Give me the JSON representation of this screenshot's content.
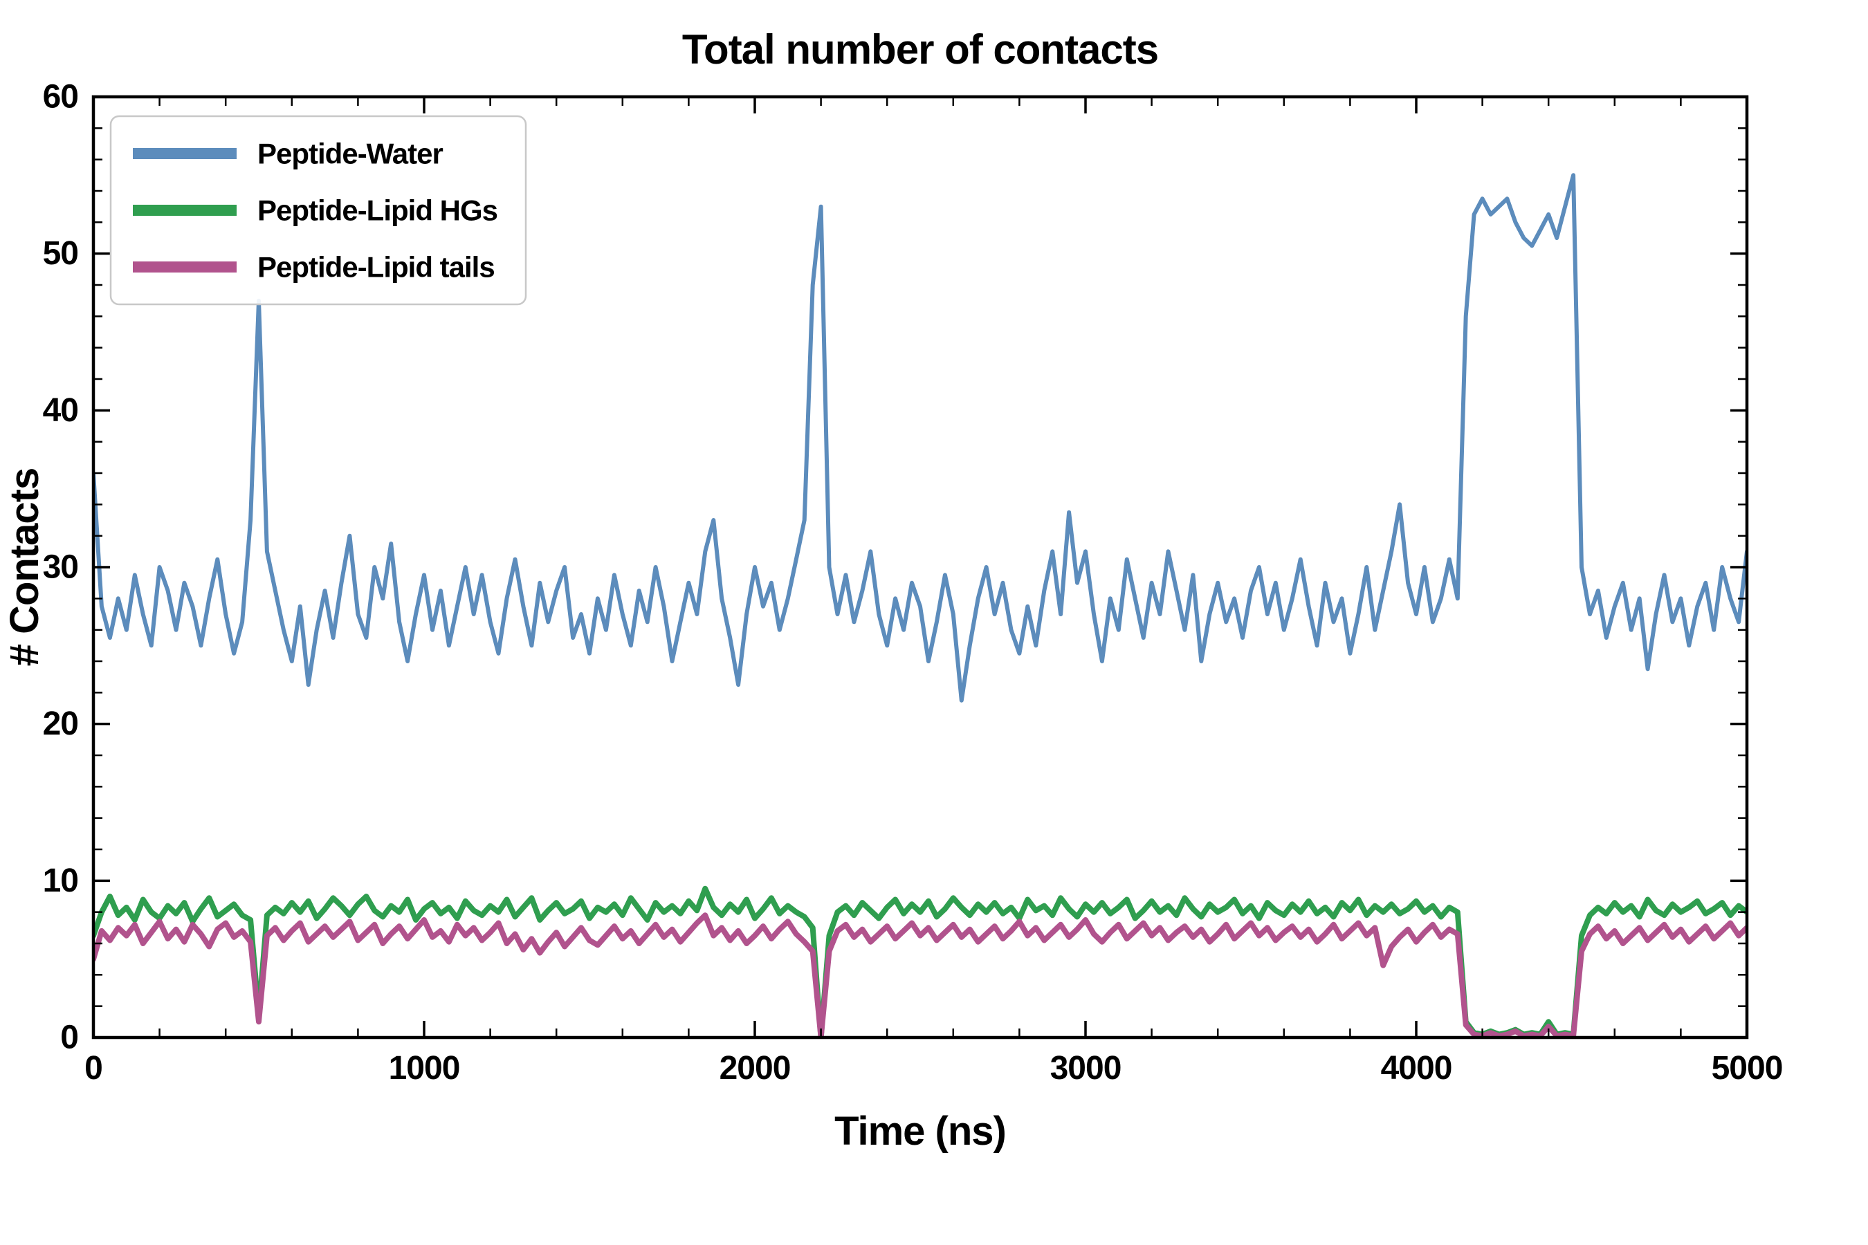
{
  "figure": {
    "background": "#ffffff",
    "axis_color": "#000000"
  },
  "chart_data": {
    "type": "line",
    "title": "Total number of contacts",
    "xlabel": "Time (ns)",
    "ylabel": "# Contacts",
    "xlim": [
      0,
      5000
    ],
    "ylim": [
      0,
      60
    ],
    "x_ticks": [
      0,
      1000,
      2000,
      3000,
      4000,
      5000
    ],
    "y_ticks": [
      0,
      10,
      20,
      30,
      40,
      50,
      60
    ],
    "x_minor_step": 200,
    "y_minor_step": 2,
    "grid": false,
    "legend_position": "upper-left",
    "x_start": 0,
    "x_step": 25,
    "series": [
      {
        "name": "Peptide-Water",
        "color": "#5C8CBC",
        "width": 6,
        "values": [
          36,
          27.5,
          25.5,
          28,
          26,
          29.5,
          27,
          25,
          30,
          28.5,
          26,
          29,
          27.5,
          25,
          28,
          30.5,
          27,
          24.5,
          26.5,
          33,
          47,
          31,
          28.5,
          26,
          24,
          27.5,
          22.5,
          26,
          28.5,
          25.5,
          29,
          32,
          27,
          25.5,
          30,
          28,
          31.5,
          26.5,
          24,
          27,
          29.5,
          26,
          28.5,
          25,
          27.5,
          30,
          27,
          29.5,
          26.5,
          24.5,
          28,
          30.5,
          27.5,
          25,
          29,
          26.5,
          28.5,
          30,
          25.5,
          27,
          24.5,
          28,
          26,
          29.5,
          27,
          25,
          28.5,
          26.5,
          30,
          27.5,
          24,
          26.5,
          29,
          27,
          31,
          33,
          28,
          25.5,
          22.5,
          27,
          30,
          27.5,
          29,
          26,
          28,
          30.5,
          33,
          48,
          53,
          30,
          27,
          29.5,
          26.5,
          28.5,
          31,
          27,
          25,
          28,
          26,
          29,
          27.5,
          24,
          26.5,
          29.5,
          27,
          21.5,
          25,
          28,
          30,
          27,
          29,
          26,
          24.5,
          27.5,
          25,
          28.5,
          31,
          27,
          33.5,
          29,
          31,
          27,
          24,
          28,
          26,
          30.5,
          28,
          25.5,
          29,
          27,
          31,
          28.5,
          26,
          29.5,
          24,
          27,
          29,
          26.5,
          28,
          25.5,
          28.5,
          30,
          27,
          29,
          26,
          28,
          30.5,
          27.5,
          25,
          29,
          26.5,
          28,
          24.5,
          27,
          30,
          26,
          28.5,
          31,
          34,
          29,
          27,
          30,
          26.5,
          28,
          30.5,
          28,
          46,
          52.5,
          53.5,
          52.5,
          53,
          53.5,
          52,
          51,
          50.5,
          51.5,
          52.5,
          51,
          53,
          55,
          30,
          27,
          28.5,
          25.5,
          27.5,
          29,
          26,
          28,
          23.5,
          27,
          29.5,
          26.5,
          28,
          25,
          27.5,
          29,
          26,
          30,
          28,
          26.5,
          31
        ]
      },
      {
        "name": "Peptide-Lipid HGs",
        "color": "#2F9E4F",
        "width": 8,
        "values": [
          6.5,
          8,
          9,
          7.8,
          8.3,
          7.5,
          8.8,
          8,
          7.6,
          8.4,
          7.9,
          8.6,
          7.4,
          8.2,
          8.9,
          7.7,
          8.1,
          8.5,
          7.8,
          7.5,
          1.5,
          7.8,
          8.3,
          7.9,
          8.6,
          8,
          8.7,
          7.6,
          8.2,
          8.9,
          8.4,
          7.8,
          8.5,
          9,
          8.1,
          7.7,
          8.4,
          8,
          8.8,
          7.5,
          8.2,
          8.6,
          7.9,
          8.3,
          7.6,
          8.7,
          8.1,
          7.8,
          8.4,
          8,
          8.8,
          7.7,
          8.3,
          8.9,
          7.5,
          8.1,
          8.6,
          7.9,
          8.2,
          8.7,
          7.6,
          8.3,
          8,
          8.5,
          7.8,
          8.9,
          8.2,
          7.5,
          8.6,
          8,
          8.4,
          7.9,
          8.7,
          8.1,
          9.5,
          8.3,
          7.8,
          8.5,
          8,
          8.8,
          7.6,
          8.2,
          8.9,
          7.9,
          8.4,
          8,
          7.7,
          7,
          0,
          6.5,
          8,
          8.4,
          7.8,
          8.6,
          8.1,
          7.6,
          8.3,
          8.8,
          7.9,
          8.5,
          8,
          8.7,
          7.7,
          8.2,
          8.9,
          8.3,
          7.8,
          8.5,
          8,
          8.6,
          7.9,
          8.3,
          7.6,
          8.8,
          8.1,
          8.4,
          7.8,
          8.9,
          8.2,
          7.7,
          8.5,
          8,
          8.6,
          7.9,
          8.3,
          8.8,
          7.6,
          8.1,
          8.7,
          8,
          8.4,
          7.8,
          8.9,
          8.2,
          7.7,
          8.5,
          8,
          8.3,
          8.8,
          7.9,
          8.4,
          7.6,
          8.6,
          8.1,
          7.8,
          8.5,
          8,
          8.7,
          7.9,
          8.3,
          7.7,
          8.6,
          8.1,
          8.8,
          7.8,
          8.4,
          8,
          8.5,
          7.9,
          8.2,
          8.7,
          8,
          8.4,
          7.7,
          8.3,
          8,
          1,
          0.3,
          0.2,
          0.4,
          0.2,
          0.3,
          0.5,
          0.2,
          0.3,
          0.2,
          1,
          0.2,
          0.3,
          0.2,
          6.5,
          7.8,
          8.3,
          7.9,
          8.6,
          8,
          8.4,
          7.7,
          8.8,
          8.1,
          7.8,
          8.5,
          8,
          8.3,
          8.7,
          7.9,
          8.2,
          8.6,
          7.8,
          8.4,
          8
        ]
      },
      {
        "name": "Peptide-Lipid tails",
        "color": "#B1538D",
        "width": 8,
        "values": [
          5,
          6.8,
          6.2,
          7,
          6.5,
          7.2,
          6,
          6.7,
          7.4,
          6.3,
          6.9,
          6.1,
          7.2,
          6.6,
          5.8,
          6.9,
          7.3,
          6.4,
          6.8,
          6.1,
          1,
          6.5,
          7,
          6.2,
          6.8,
          7.3,
          6.1,
          6.6,
          7.1,
          6.4,
          6.9,
          7.4,
          6.2,
          6.7,
          7.2,
          6,
          6.6,
          7.1,
          6.3,
          6.9,
          7.5,
          6.4,
          6.8,
          6.1,
          7.2,
          6.5,
          7,
          6.2,
          6.7,
          7.3,
          6,
          6.6,
          5.6,
          6.3,
          5.4,
          6.1,
          6.7,
          5.8,
          6.4,
          7,
          6.2,
          5.9,
          6.5,
          7.1,
          6.3,
          6.8,
          6,
          6.6,
          7.2,
          6.4,
          6.9,
          6.1,
          6.7,
          7.3,
          7.8,
          6.5,
          7,
          6.2,
          6.8,
          6,
          6.5,
          7.1,
          6.3,
          6.9,
          7.4,
          6.6,
          6.1,
          5.5,
          0,
          5.5,
          6.8,
          7.2,
          6.4,
          6.9,
          6.1,
          6.6,
          7.1,
          6.3,
          6.8,
          7.3,
          6.5,
          7,
          6.2,
          6.7,
          7.2,
          6.4,
          6.9,
          6.1,
          6.6,
          7.1,
          6.3,
          6.8,
          7.4,
          6.5,
          7,
          6.2,
          6.7,
          7.2,
          6.4,
          6.9,
          7.5,
          6.6,
          6.1,
          6.7,
          7.2,
          6.3,
          6.8,
          7.3,
          6.5,
          7,
          6.2,
          6.7,
          7.1,
          6.4,
          6.9,
          6.1,
          6.6,
          7.2,
          6.3,
          6.8,
          7.3,
          6.5,
          7,
          6.2,
          6.7,
          7.1,
          6.4,
          6.9,
          6.1,
          6.6,
          7.2,
          6.3,
          6.8,
          7.3,
          6.5,
          7,
          4.6,
          5.8,
          6.4,
          6.9,
          6.1,
          6.7,
          7.2,
          6.4,
          6.9,
          6.6,
          0.8,
          0.2,
          0.1,
          0.3,
          0.1,
          0.2,
          0.4,
          0.1,
          0.2,
          0.1,
          0.7,
          0.1,
          0.2,
          0.1,
          5.5,
          6.6,
          7.1,
          6.3,
          6.8,
          6,
          6.5,
          7,
          6.2,
          6.7,
          7.2,
          6.4,
          6.9,
          6.1,
          6.6,
          7.1,
          6.3,
          6.8,
          7.3,
          6.5,
          7
        ]
      }
    ]
  }
}
